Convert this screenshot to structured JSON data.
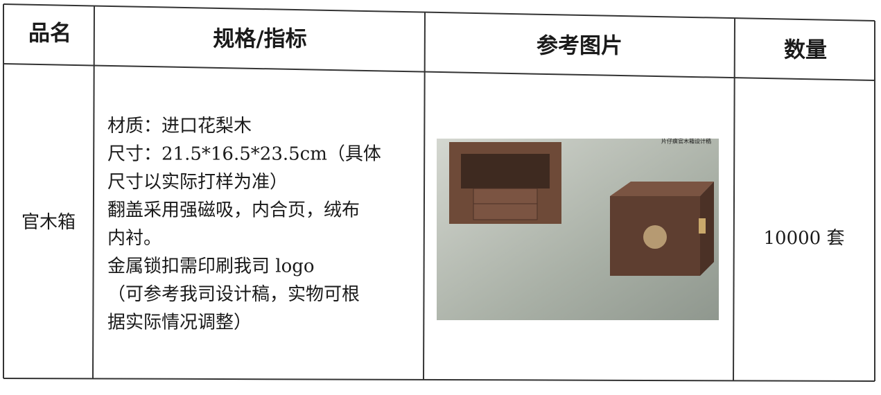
{
  "table": {
    "header": [
      "品名",
      "规格/指标",
      "参考图片",
      "数量"
    ],
    "rows": [
      {
        "name": "官木箱",
        "spec": [
          "材质：进口花梨木",
          "尺寸：21.5*16.5*23.5cm（具体",
          "尺寸以实际打样为准）",
          "翻盖采用强磁吸，内合页，绒布",
          "内衬。",
          "金属锁扣需印刷我司 logo",
          "（可参考我司设计稿，实物可根",
          "据实际情况调整）"
        ],
        "image_caption": "片仔癀官木箱设计稿",
        "quantity": "10000 套"
      }
    ]
  }
}
